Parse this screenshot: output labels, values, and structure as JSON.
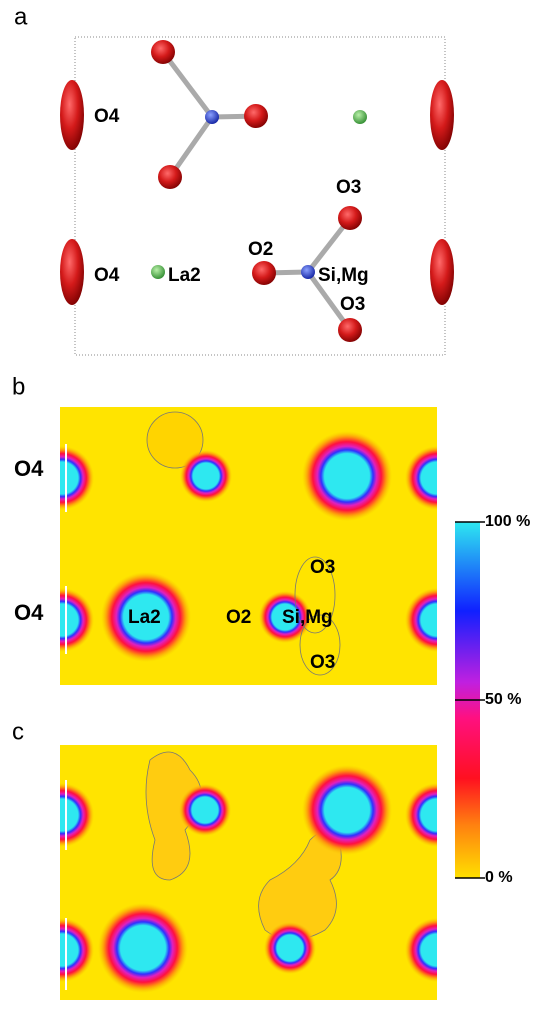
{
  "panels": [
    {
      "label": "a",
      "atom_labels": [
        "O4",
        "O4",
        "La2",
        "O2",
        "Si,Mg",
        "O3",
        "O3"
      ]
    },
    {
      "label": "b",
      "atom_labels": [
        "O4",
        "O4",
        "La2",
        "O2",
        "Si,Mg",
        "O3",
        "O3"
      ]
    },
    {
      "label": "c"
    }
  ],
  "colorbar": {
    "labels": [
      "100 %",
      "50 %",
      "0 %"
    ]
  }
}
